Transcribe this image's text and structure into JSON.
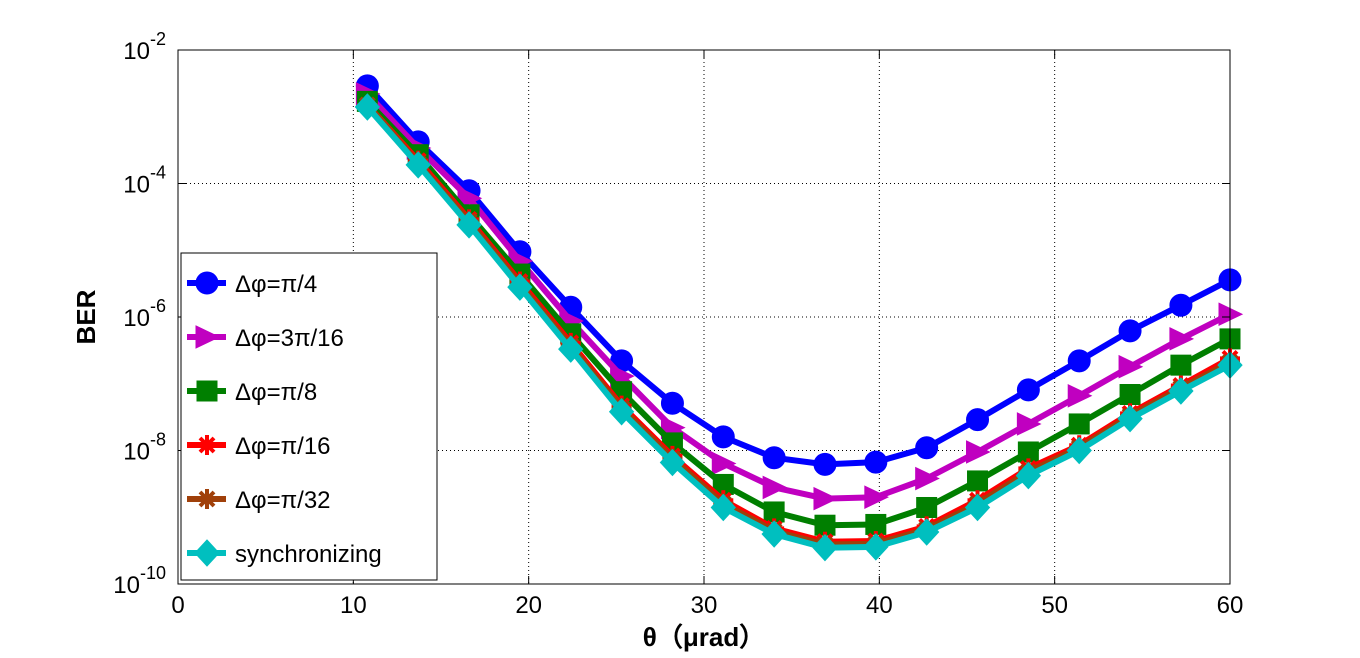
{
  "chart_data": {
    "type": "line",
    "xlabel": "θ（μrad）",
    "ylabel": "BER",
    "xlim": [
      0,
      60
    ],
    "ylim_exponent": [
      -10,
      -2
    ],
    "y_scale": "log",
    "grid": true,
    "legend_position": "left",
    "x_ticks": [
      0,
      10,
      20,
      30,
      40,
      50,
      60
    ],
    "y_ticks": [
      {
        "base": "10",
        "exp": "-2",
        "value": 0.01
      },
      {
        "base": "10",
        "exp": "-4",
        "value": 0.0001
      },
      {
        "base": "10",
        "exp": "-6",
        "value": 1e-06
      },
      {
        "base": "10",
        "exp": "-8",
        "value": 1e-08
      },
      {
        "base": "10",
        "exp": "-10",
        "value": 1e-10
      }
    ],
    "x": [
      10.8,
      13.7,
      16.6,
      19.5,
      22.4,
      25.3,
      28.2,
      31.1,
      34.0,
      36.9,
      39.8,
      42.7,
      45.6,
      48.5,
      51.4,
      54.3,
      57.2,
      60.0
    ],
    "series": [
      {
        "name": "Δφ=π/4",
        "color": "#0000ff",
        "marker": "circle",
        "values": [
          0.0029,
          0.00042,
          7.8e-05,
          9.5e-06,
          1.4e-06,
          2.2e-07,
          5.1e-08,
          1.6e-08,
          7.8e-09,
          6.2e-09,
          6.7e-09,
          1.1e-08,
          2.9e-08,
          8.1e-08,
          2.2e-07,
          6.2e-07,
          1.5e-06,
          3.6e-06
        ]
      },
      {
        "name": "Δφ=3π/16",
        "color": "#c000c0",
        "marker": "triangle-right",
        "values": [
          0.0022,
          0.00034,
          6e-05,
          6.9e-06,
          8.7e-07,
          1.3e-07,
          2.2e-08,
          6.4e-09,
          2.8e-09,
          1.9e-09,
          2e-09,
          3.8e-09,
          9.5e-09,
          2.5e-08,
          6.6e-08,
          1.8e-07,
          4.7e-07,
          1.1e-06
        ]
      },
      {
        "name": "Δφ=π/8",
        "color": "#007f00",
        "marker": "square",
        "values": [
          0.0017,
          0.00027,
          3.4e-05,
          4.4e-06,
          5.6e-07,
          7.6e-08,
          1.3e-08,
          3.1e-09,
          1.2e-09,
          7.6e-10,
          7.8e-10,
          1.4e-09,
          3.5e-09,
          9.5e-09,
          2.5e-08,
          6.9e-08,
          1.9e-07,
          4.7e-07
        ]
      },
      {
        "name": "Δφ=π/16",
        "color": "#ff0000",
        "marker": "asterisk",
        "values": [
          0.0015,
          0.00022,
          2.9e-05,
          3.4e-06,
          4.1e-07,
          4.7e-08,
          8.3e-09,
          1.8e-09,
          6.8e-10,
          4.3e-10,
          4.4e-10,
          7.3e-10,
          1.8e-09,
          5.4e-09,
          1.2e-08,
          3.6e-08,
          9.4e-08,
          2.4e-07
        ]
      },
      {
        "name": "Δφ=π/32",
        "color": "#a0400a",
        "marker": "asterisk",
        "values": [
          0.0015,
          0.0002,
          2.7e-05,
          3.1e-06,
          3.7e-07,
          4.3e-08,
          7.5e-09,
          1.6e-09,
          6.2e-10,
          3.9e-10,
          4e-10,
          6.6e-10,
          1.6e-09,
          4.8e-09,
          1.1e-08,
          3.3e-08,
          8.6e-08,
          2.1e-07
        ]
      },
      {
        "name": "synchronizing",
        "color": "#00bfbf",
        "marker": "diamond",
        "values": [
          0.0014,
          0.00019,
          2.4e-05,
          2.8e-06,
          3.3e-07,
          3.8e-08,
          6.6e-09,
          1.4e-09,
          5.6e-10,
          3.5e-10,
          3.6e-10,
          6e-10,
          1.4e-09,
          4.2e-09,
          1e-08,
          3e-08,
          7.8e-08,
          1.9e-07
        ]
      }
    ]
  }
}
